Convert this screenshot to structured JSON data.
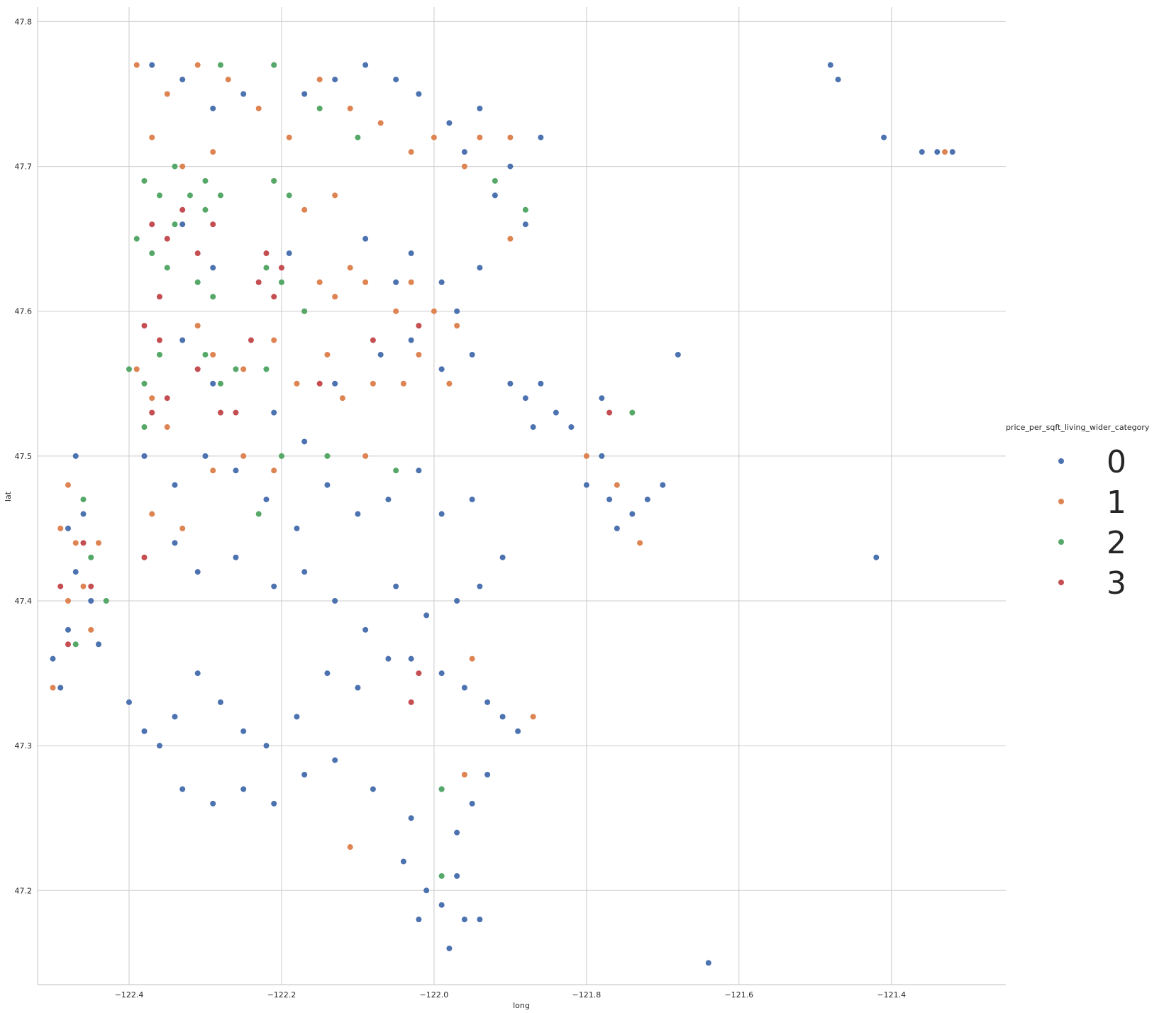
{
  "chart_data": {
    "type": "scatter",
    "xlabel": "long",
    "ylabel": "lat",
    "xlim": [
      -122.52,
      -121.25
    ],
    "ylim": [
      47.135,
      47.81
    ],
    "xticks": [
      {
        "value": -122.4,
        "label": "−122.4"
      },
      {
        "value": -122.2,
        "label": "−122.2"
      },
      {
        "value": -122.0,
        "label": "−122.0"
      },
      {
        "value": -121.8,
        "label": "−121.8"
      },
      {
        "value": -121.6,
        "label": "−121.6"
      },
      {
        "value": -121.4,
        "label": "−121.4"
      }
    ],
    "yticks": [
      {
        "value": 47.2,
        "label": "47.2"
      },
      {
        "value": 47.3,
        "label": "47.3"
      },
      {
        "value": 47.4,
        "label": "47.4"
      },
      {
        "value": 47.5,
        "label": "47.5"
      },
      {
        "value": 47.6,
        "label": "47.6"
      },
      {
        "value": 47.7,
        "label": "47.7"
      },
      {
        "value": 47.8,
        "label": "47.8"
      }
    ],
    "grid": true,
    "legend": {
      "title": "price_per_sqft_living_wider_category",
      "placement": "right"
    },
    "series": [
      {
        "name": "0",
        "color": "#4c72b0",
        "points": [
          [
            -122.37,
            47.77
          ],
          [
            -122.33,
            47.76
          ],
          [
            -122.29,
            47.74
          ],
          [
            -122.25,
            47.75
          ],
          [
            -122.21,
            47.77
          ],
          [
            -122.17,
            47.75
          ],
          [
            -122.13,
            47.76
          ],
          [
            -122.09,
            47.77
          ],
          [
            -122.05,
            47.76
          ],
          [
            -122.02,
            47.75
          ],
          [
            -121.98,
            47.73
          ],
          [
            -121.96,
            47.71
          ],
          [
            -121.94,
            47.74
          ],
          [
            -121.92,
            47.68
          ],
          [
            -121.9,
            47.7
          ],
          [
            -121.88,
            47.66
          ],
          [
            -121.86,
            47.72
          ],
          [
            -122.33,
            47.66
          ],
          [
            -122.29,
            47.63
          ],
          [
            -122.19,
            47.64
          ],
          [
            -122.09,
            47.65
          ],
          [
            -122.05,
            47.62
          ],
          [
            -122.03,
            47.64
          ],
          [
            -121.99,
            47.62
          ],
          [
            -121.97,
            47.6
          ],
          [
            -121.94,
            47.63
          ],
          [
            -122.33,
            47.58
          ],
          [
            -122.29,
            47.55
          ],
          [
            -122.21,
            47.53
          ],
          [
            -122.17,
            47.51
          ],
          [
            -122.13,
            47.55
          ],
          [
            -122.07,
            47.57
          ],
          [
            -122.03,
            47.58
          ],
          [
            -121.99,
            47.56
          ],
          [
            -121.95,
            47.57
          ],
          [
            -121.9,
            47.55
          ],
          [
            -121.88,
            47.54
          ],
          [
            -121.86,
            47.55
          ],
          [
            -121.84,
            47.53
          ],
          [
            -121.87,
            47.52
          ],
          [
            -121.82,
            47.52
          ],
          [
            -121.78,
            47.5
          ],
          [
            -121.78,
            47.54
          ],
          [
            -121.68,
            47.57
          ],
          [
            -122.38,
            47.5
          ],
          [
            -122.34,
            47.48
          ],
          [
            -122.3,
            47.5
          ],
          [
            -122.26,
            47.49
          ],
          [
            -122.22,
            47.47
          ],
          [
            -122.18,
            47.45
          ],
          [
            -122.14,
            47.48
          ],
          [
            -122.1,
            47.46
          ],
          [
            -122.06,
            47.47
          ],
          [
            -122.02,
            47.49
          ],
          [
            -121.99,
            47.46
          ],
          [
            -121.95,
            47.47
          ],
          [
            -121.91,
            47.43
          ],
          [
            -121.8,
            47.48
          ],
          [
            -121.77,
            47.47
          ],
          [
            -121.74,
            47.46
          ],
          [
            -121.72,
            47.47
          ],
          [
            -121.76,
            47.45
          ],
          [
            -121.7,
            47.48
          ],
          [
            -122.34,
            47.44
          ],
          [
            -122.31,
            47.42
          ],
          [
            -122.26,
            47.43
          ],
          [
            -122.21,
            47.41
          ],
          [
            -122.17,
            47.42
          ],
          [
            -122.13,
            47.4
          ],
          [
            -122.09,
            47.38
          ],
          [
            -122.05,
            47.41
          ],
          [
            -122.01,
            47.39
          ],
          [
            -121.97,
            47.4
          ],
          [
            -121.94,
            47.41
          ],
          [
            -122.4,
            47.33
          ],
          [
            -122.38,
            47.31
          ],
          [
            -122.36,
            47.3
          ],
          [
            -122.34,
            47.32
          ],
          [
            -122.31,
            47.35
          ],
          [
            -122.28,
            47.33
          ],
          [
            -122.25,
            47.31
          ],
          [
            -122.22,
            47.3
          ],
          [
            -122.18,
            47.32
          ],
          [
            -122.14,
            47.35
          ],
          [
            -122.1,
            47.34
          ],
          [
            -122.06,
            47.36
          ],
          [
            -122.03,
            47.36
          ],
          [
            -121.99,
            47.35
          ],
          [
            -121.96,
            47.34
          ],
          [
            -121.93,
            47.33
          ],
          [
            -121.91,
            47.32
          ],
          [
            -121.89,
            47.31
          ],
          [
            -122.33,
            47.27
          ],
          [
            -122.29,
            47.26
          ],
          [
            -122.25,
            47.27
          ],
          [
            -122.21,
            47.26
          ],
          [
            -122.17,
            47.28
          ],
          [
            -122.13,
            47.29
          ],
          [
            -122.08,
            47.27
          ],
          [
            -122.03,
            47.25
          ],
          [
            -121.99,
            47.27
          ],
          [
            -121.97,
            47.24
          ],
          [
            -121.95,
            47.26
          ],
          [
            -121.93,
            47.28
          ],
          [
            -122.04,
            47.22
          ],
          [
            -122.01,
            47.2
          ],
          [
            -121.99,
            47.19
          ],
          [
            -121.97,
            47.21
          ],
          [
            -121.96,
            47.18
          ],
          [
            -121.98,
            47.16
          ],
          [
            -122.02,
            47.18
          ],
          [
            -121.94,
            47.18
          ],
          [
            -122.5,
            47.36
          ],
          [
            -122.49,
            47.34
          ],
          [
            -122.48,
            47.38
          ],
          [
            -122.47,
            47.42
          ],
          [
            -122.46,
            47.46
          ],
          [
            -122.48,
            47.45
          ],
          [
            -122.47,
            47.5
          ],
          [
            -122.45,
            47.4
          ],
          [
            -122.44,
            47.37
          ],
          [
            -121.48,
            47.77
          ],
          [
            -121.47,
            47.76
          ],
          [
            -121.41,
            47.72
          ],
          [
            -121.36,
            47.71
          ],
          [
            -121.34,
            47.71
          ],
          [
            -121.32,
            47.71
          ],
          [
            -121.42,
            47.43
          ],
          [
            -121.64,
            47.15
          ]
        ]
      },
      {
        "name": "1",
        "color": "#dd8452",
        "points": [
          [
            -122.39,
            47.77
          ],
          [
            -122.35,
            47.75
          ],
          [
            -122.31,
            47.77
          ],
          [
            -122.27,
            47.76
          ],
          [
            -122.23,
            47.74
          ],
          [
            -122.19,
            47.72
          ],
          [
            -122.15,
            47.76
          ],
          [
            -122.11,
            47.74
          ],
          [
            -122.07,
            47.73
          ],
          [
            -122.03,
            47.71
          ],
          [
            -122.0,
            47.72
          ],
          [
            -121.94,
            47.72
          ],
          [
            -121.96,
            47.7
          ],
          [
            -121.9,
            47.72
          ],
          [
            -122.37,
            47.72
          ],
          [
            -122.33,
            47.7
          ],
          [
            -122.29,
            47.71
          ],
          [
            -122.21,
            47.69
          ],
          [
            -122.17,
            47.67
          ],
          [
            -122.13,
            47.68
          ],
          [
            -122.11,
            47.63
          ],
          [
            -122.15,
            47.62
          ],
          [
            -122.17,
            47.6
          ],
          [
            -122.13,
            47.61
          ],
          [
            -122.09,
            47.62
          ],
          [
            -122.05,
            47.6
          ],
          [
            -122.03,
            47.62
          ],
          [
            -122.0,
            47.6
          ],
          [
            -122.02,
            47.57
          ],
          [
            -121.98,
            47.55
          ],
          [
            -121.97,
            47.59
          ],
          [
            -122.39,
            47.56
          ],
          [
            -122.37,
            47.54
          ],
          [
            -122.35,
            47.52
          ],
          [
            -122.31,
            47.59
          ],
          [
            -122.29,
            47.57
          ],
          [
            -122.25,
            47.56
          ],
          [
            -122.21,
            47.58
          ],
          [
            -122.18,
            47.55
          ],
          [
            -122.14,
            47.57
          ],
          [
            -122.12,
            47.54
          ],
          [
            -122.08,
            47.55
          ],
          [
            -122.04,
            47.55
          ],
          [
            -122.37,
            47.46
          ],
          [
            -122.33,
            47.45
          ],
          [
            -122.29,
            47.49
          ],
          [
            -122.25,
            47.5
          ],
          [
            -122.21,
            47.49
          ],
          [
            -122.09,
            47.5
          ],
          [
            -122.48,
            47.48
          ],
          [
            -122.47,
            47.44
          ],
          [
            -122.46,
            47.41
          ],
          [
            -122.45,
            47.38
          ],
          [
            -122.44,
            47.44
          ],
          [
            -122.48,
            47.4
          ],
          [
            -122.5,
            47.34
          ],
          [
            -122.49,
            47.45
          ],
          [
            -121.95,
            47.36
          ],
          [
            -121.96,
            47.28
          ],
          [
            -121.87,
            47.32
          ],
          [
            -121.76,
            47.48
          ],
          [
            -121.8,
            47.5
          ],
          [
            -121.73,
            47.44
          ],
          [
            -121.33,
            47.71
          ],
          [
            -121.9,
            47.65
          ],
          [
            -122.11,
            47.23
          ]
        ]
      },
      {
        "name": "2",
        "color": "#55a868",
        "points": [
          [
            -122.38,
            47.69
          ],
          [
            -122.36,
            47.68
          ],
          [
            -122.34,
            47.7
          ],
          [
            -122.32,
            47.68
          ],
          [
            -122.3,
            47.69
          ],
          [
            -122.28,
            47.68
          ],
          [
            -122.34,
            47.66
          ],
          [
            -122.3,
            47.67
          ],
          [
            -122.39,
            47.65
          ],
          [
            -122.37,
            47.64
          ],
          [
            -122.35,
            47.63
          ],
          [
            -122.31,
            47.62
          ],
          [
            -122.29,
            47.61
          ],
          [
            -122.21,
            47.69
          ],
          [
            -122.19,
            47.68
          ],
          [
            -122.22,
            47.63
          ],
          [
            -122.2,
            47.62
          ],
          [
            -122.17,
            47.6
          ],
          [
            -122.4,
            47.56
          ],
          [
            -122.38,
            47.55
          ],
          [
            -122.36,
            47.57
          ],
          [
            -122.38,
            47.52
          ],
          [
            -122.3,
            47.57
          ],
          [
            -122.28,
            47.55
          ],
          [
            -122.26,
            47.56
          ],
          [
            -122.22,
            47.56
          ],
          [
            -122.28,
            47.77
          ],
          [
            -122.21,
            47.77
          ],
          [
            -122.15,
            47.74
          ],
          [
            -122.1,
            47.72
          ],
          [
            -122.2,
            47.5
          ],
          [
            -122.23,
            47.46
          ],
          [
            -122.14,
            47.5
          ],
          [
            -122.05,
            47.49
          ],
          [
            -122.46,
            47.47
          ],
          [
            -122.45,
            47.43
          ],
          [
            -122.47,
            47.37
          ],
          [
            -122.43,
            47.4
          ],
          [
            -121.99,
            47.21
          ],
          [
            -121.92,
            47.69
          ],
          [
            -121.88,
            47.67
          ],
          [
            -121.74,
            47.53
          ],
          [
            -121.99,
            47.27
          ]
        ]
      },
      {
        "name": "3",
        "color": "#c44e52",
        "points": [
          [
            -122.37,
            47.66
          ],
          [
            -122.33,
            47.67
          ],
          [
            -122.29,
            47.66
          ],
          [
            -122.35,
            47.65
          ],
          [
            -122.31,
            47.64
          ],
          [
            -122.36,
            47.61
          ],
          [
            -122.22,
            47.64
          ],
          [
            -122.2,
            47.63
          ],
          [
            -122.21,
            47.61
          ],
          [
            -122.23,
            47.62
          ],
          [
            -122.38,
            47.59
          ],
          [
            -122.36,
            47.58
          ],
          [
            -122.35,
            47.54
          ],
          [
            -122.37,
            47.53
          ],
          [
            -122.31,
            47.56
          ],
          [
            -122.28,
            47.53
          ],
          [
            -122.24,
            47.58
          ],
          [
            -122.26,
            47.53
          ],
          [
            -122.15,
            47.55
          ],
          [
            -122.08,
            47.58
          ],
          [
            -122.02,
            47.59
          ],
          [
            -122.03,
            47.33
          ],
          [
            -122.02,
            47.35
          ],
          [
            -122.38,
            47.43
          ],
          [
            -122.46,
            47.44
          ],
          [
            -122.45,
            47.41
          ],
          [
            -122.49,
            47.41
          ],
          [
            -122.48,
            47.37
          ],
          [
            -121.77,
            47.53
          ]
        ]
      }
    ]
  }
}
